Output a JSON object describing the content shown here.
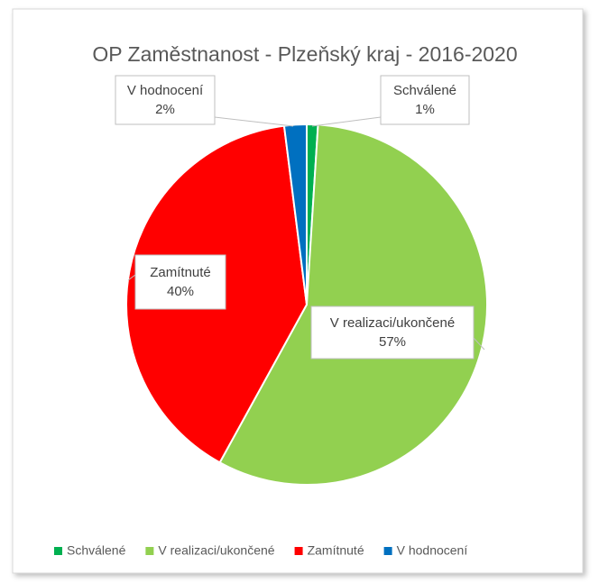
{
  "chart_data": {
    "type": "pie",
    "title": "OP Zaměstnanost - Plzeňský kraj - 2016-2020",
    "categories": [
      "Schválené",
      "V realizaci/ukončené",
      "Zamítnuté",
      "V hodnocení"
    ],
    "values": [
      1,
      57,
      40,
      2
    ],
    "value_labels": [
      "1%",
      "57%",
      "40%",
      "2%"
    ],
    "colors": [
      "#00b050",
      "#92d050",
      "#ff0000",
      "#0070c0"
    ],
    "legend": "bottom"
  }
}
